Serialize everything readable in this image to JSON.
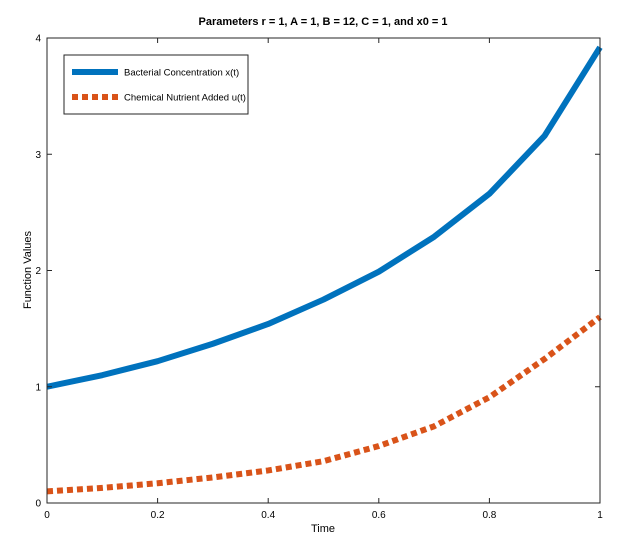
{
  "chart_data": {
    "type": "line",
    "title": "Parameters r = 1, A = 1, B = 12, C = 1, and x0 = 1",
    "xlabel": "Time",
    "ylabel": "Function Values",
    "xlim": [
      0,
      1
    ],
    "ylim": [
      0,
      4
    ],
    "x_ticks": [
      "0",
      "0.2",
      "0.4",
      "0.6",
      "0.8",
      "1"
    ],
    "y_ticks": [
      "0",
      "1",
      "2",
      "3",
      "4"
    ],
    "grid": false,
    "legend_position": "top-left",
    "series": [
      {
        "name": "Bacterial Concentration x(t)",
        "color": "#0072BD",
        "style": "solid",
        "x": [
          0,
          0.1,
          0.2,
          0.3,
          0.4,
          0.5,
          0.6,
          0.7,
          0.8,
          0.9,
          1.0
        ],
        "y": [
          1.0,
          1.1,
          1.22,
          1.37,
          1.54,
          1.75,
          1.99,
          2.29,
          2.66,
          3.16,
          3.92
        ]
      },
      {
        "name": "Chemical Nutrient Added u(t)",
        "color": "#D95319",
        "style": "dotted",
        "x": [
          0,
          0.1,
          0.2,
          0.3,
          0.4,
          0.5,
          0.6,
          0.7,
          0.8,
          0.9,
          1.0
        ],
        "y": [
          0.1,
          0.13,
          0.17,
          0.22,
          0.28,
          0.36,
          0.49,
          0.66,
          0.91,
          1.24,
          1.6
        ]
      }
    ]
  }
}
